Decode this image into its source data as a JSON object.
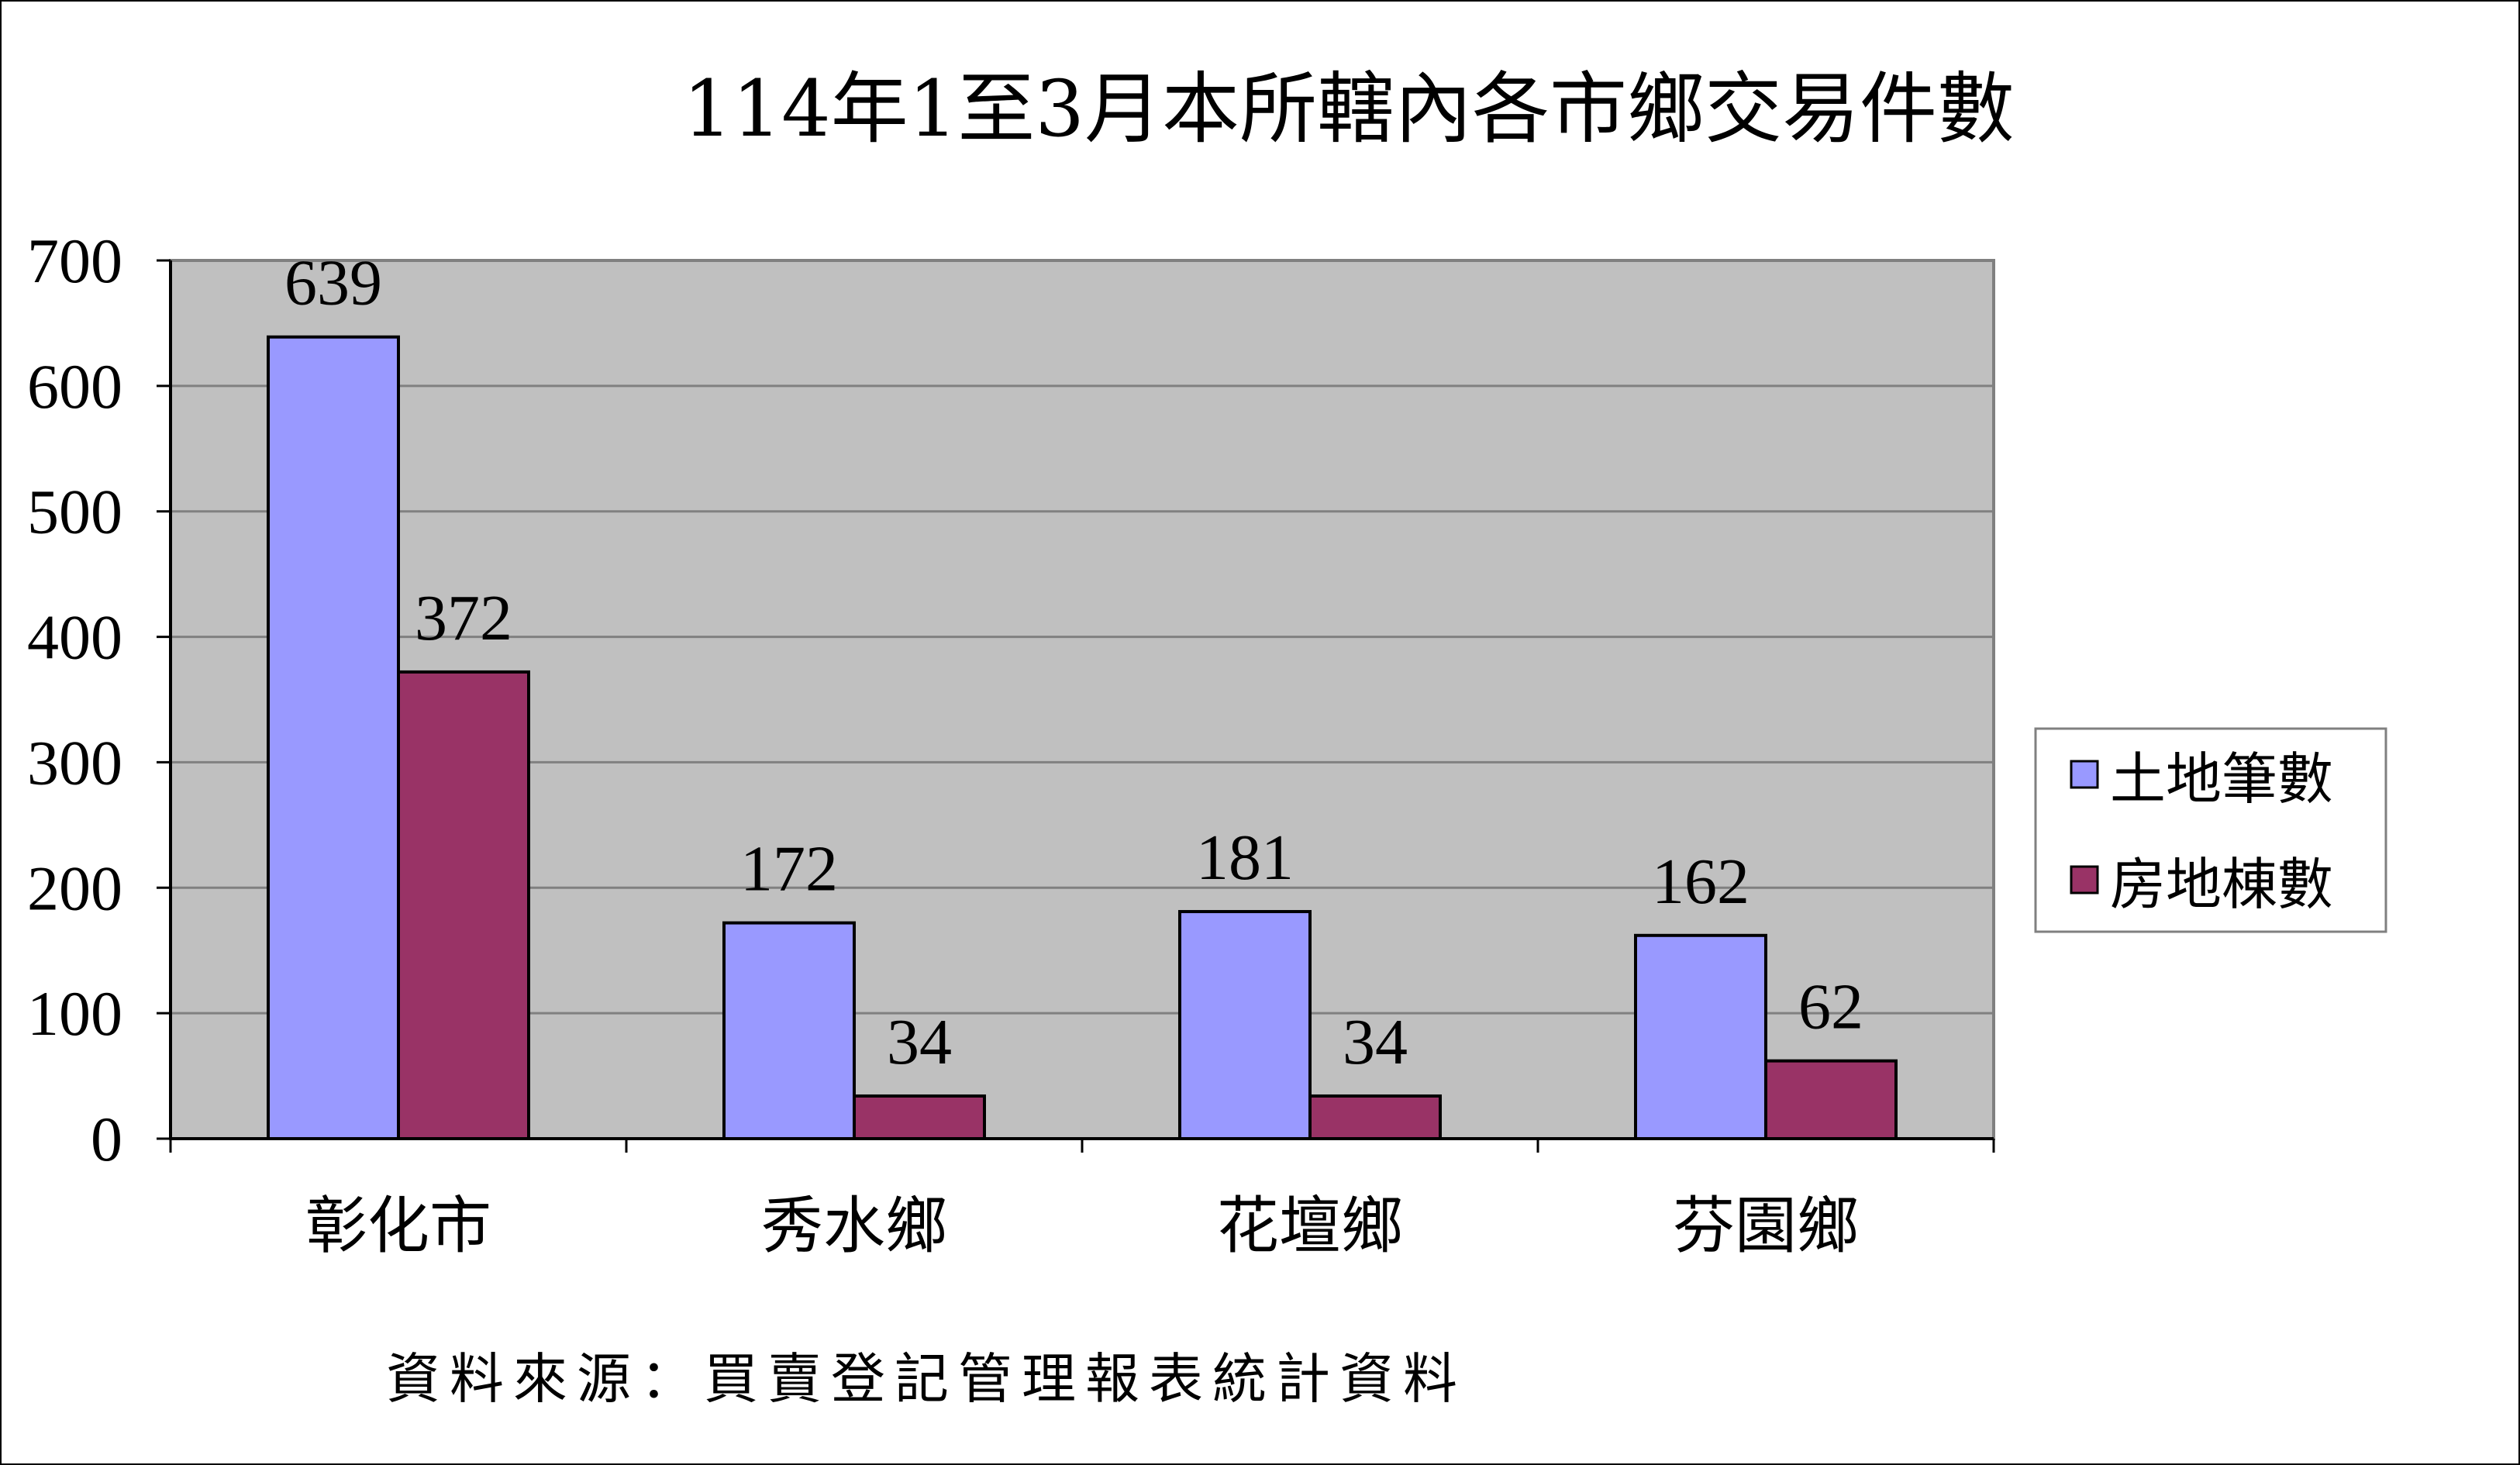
{
  "chart_data": {
    "type": "bar",
    "title": "114年1至3月本所轄內各市鄉交易件數",
    "categories": [
      "彰化市",
      "秀水鄉",
      "花壇鄉",
      "芬園鄉"
    ],
    "series": [
      {
        "name": "土地筆數",
        "color": "#9999ff",
        "values": [
          639,
          172,
          181,
          162
        ]
      },
      {
        "name": "房地棟數",
        "color": "#993366",
        "values": [
          372,
          34,
          34,
          62
        ]
      }
    ],
    "ylim": [
      0,
      700
    ],
    "yticks": [
      0,
      100,
      200,
      300,
      400,
      500,
      600,
      700
    ],
    "xlabel": "",
    "ylabel": "",
    "grid": true,
    "plot_background": "#c0c0c0",
    "legend_position": "right",
    "source_note": "資料來源：買賣登記管理報表統計資料"
  }
}
